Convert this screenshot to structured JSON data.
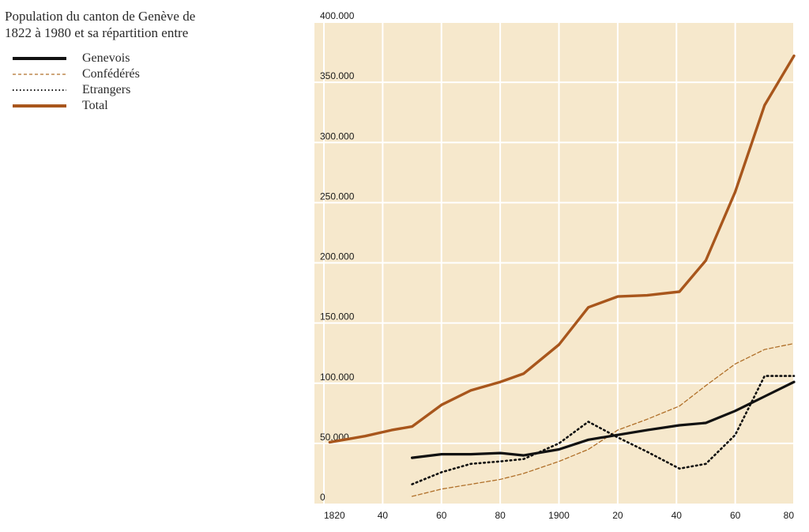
{
  "chart_data": {
    "type": "line",
    "title_lines": [
      "Population du canton de Genève de",
      "1822 à 1980 et sa répartition entre"
    ],
    "xlabel": "",
    "ylabel": "",
    "xlim": [
      1820,
      1980
    ],
    "ylim": [
      0,
      400000
    ],
    "x_ticks": [
      1820,
      1840,
      1860,
      1880,
      1900,
      1920,
      1940,
      1960,
      1980
    ],
    "x_tick_labels": [
      "1820",
      "40",
      "60",
      "80",
      "1900",
      "20",
      "40",
      "60",
      "80"
    ],
    "y_ticks": [
      0,
      50000,
      100000,
      150000,
      200000,
      250000,
      300000,
      350000,
      400000
    ],
    "y_tick_labels": [
      "0",
      "50.000",
      "100.000",
      "150.000",
      "200.000",
      "250.000",
      "300.000",
      "350.000",
      "400.000"
    ],
    "grid": true,
    "legend_position": "top-left, outside",
    "background_color": "#f6e8cc",
    "grid_color": "#ffffff",
    "series": [
      {
        "name": "Genevois",
        "style": "solid",
        "color": "#111111",
        "x": [
          1850,
          1860,
          1870,
          1880,
          1888,
          1900,
          1910,
          1920,
          1930,
          1941,
          1950,
          1960,
          1970,
          1980
        ],
        "y": [
          38000,
          41000,
          41000,
          42000,
          40000,
          45000,
          53000,
          57000,
          61000,
          65000,
          67000,
          77000,
          89000,
          101000
        ]
      },
      {
        "name": "Confédérés",
        "style": "dashed",
        "color": "#b0702a",
        "x": [
          1850,
          1860,
          1870,
          1880,
          1888,
          1900,
          1910,
          1920,
          1930,
          1941,
          1950,
          1960,
          1970,
          1980
        ],
        "y": [
          6000,
          12000,
          16000,
          20000,
          25000,
          35000,
          45000,
          61000,
          70000,
          81000,
          98000,
          116000,
          128000,
          133000
        ]
      },
      {
        "name": "Etrangers",
        "style": "dotted",
        "color": "#111111",
        "x": [
          1850,
          1860,
          1870,
          1880,
          1888,
          1900,
          1910,
          1920,
          1930,
          1941,
          1950,
          1960,
          1970,
          1980
        ],
        "y": [
          16000,
          26000,
          33000,
          35000,
          37000,
          50000,
          68000,
          55000,
          43000,
          29000,
          33000,
          57000,
          106000,
          106000
        ]
      },
      {
        "name": "Total",
        "style": "solid",
        "color": "#a8561c",
        "x": [
          1822,
          1834,
          1843,
          1850,
          1860,
          1870,
          1880,
          1888,
          1900,
          1910,
          1920,
          1930,
          1941,
          1950,
          1960,
          1970,
          1980
        ],
        "y": [
          51000,
          56000,
          61000,
          64000,
          82000,
          94000,
          101000,
          108000,
          132000,
          163000,
          172000,
          173000,
          176000,
          202000,
          259000,
          331000,
          372000
        ]
      }
    ]
  }
}
